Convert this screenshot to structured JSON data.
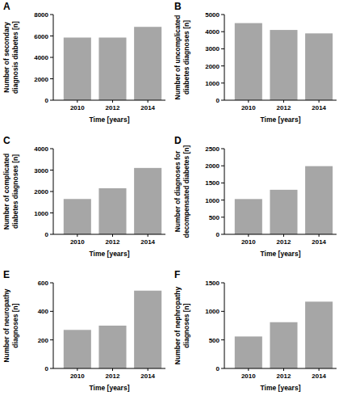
{
  "chart_data": [
    {
      "type": "bar",
      "title": "A",
      "y_label": "Number of secondary diagnosis diabetes [n]",
      "x_label": "Time [years]",
      "categories": [
        "2010",
        "2012",
        "2014"
      ],
      "values": [
        5850,
        5850,
        6850
      ],
      "color": "#a6a6a6",
      "ylim": [
        0,
        8000
      ],
      "yticks": [
        0,
        2000,
        4000,
        6000,
        8000
      ]
    },
    {
      "type": "bar",
      "title": "B",
      "y_label": "Number of uncomplicated diabetes diagnoses [n]",
      "x_label": "Time [years]",
      "categories": [
        "2010",
        "2012",
        "2014"
      ],
      "values": [
        4500,
        4100,
        3900
      ],
      "color": "#a6a6a6",
      "ylim": [
        0,
        5000
      ],
      "yticks": [
        0,
        1000,
        2000,
        3000,
        4000,
        5000
      ]
    },
    {
      "type": "bar",
      "title": "C",
      "y_label": "Number of complicated diabetes diagnoses [n]",
      "x_label": "Time [years]",
      "categories": [
        "2010",
        "2012",
        "2014"
      ],
      "values": [
        1650,
        2150,
        3100
      ],
      "color": "#a6a6a6",
      "ylim": [
        0,
        4000
      ],
      "yticks": [
        0,
        1000,
        2000,
        3000,
        4000
      ]
    },
    {
      "type": "bar",
      "title": "D",
      "y_label": "Number of diagnoses for decompensated diabetes [n]",
      "x_label": "Time [years]",
      "categories": [
        "2010",
        "2012",
        "2014"
      ],
      "values": [
        1030,
        1300,
        1990
      ],
      "color": "#a6a6a6",
      "ylim": [
        0,
        2500
      ],
      "yticks": [
        0,
        500,
        1000,
        1500,
        2000,
        2500
      ]
    },
    {
      "type": "bar",
      "title": "E",
      "y_label": "Number of neuropathy diagnoses [n]",
      "x_label": "Time [years]",
      "categories": [
        "2010",
        "2012",
        "2014"
      ],
      "values": [
        270,
        300,
        545
      ],
      "color": "#a6a6a6",
      "ylim": [
        0,
        600
      ],
      "yticks": [
        0,
        200,
        400,
        600
      ]
    },
    {
      "type": "bar",
      "title": "F",
      "y_label": "Number of nephropathy diagnoses [n]",
      "x_label": "Time [years]",
      "categories": [
        "2010",
        "2012",
        "2014"
      ],
      "values": [
        560,
        810,
        1170
      ],
      "color": "#a6a6a6",
      "ylim": [
        0,
        1500
      ],
      "yticks": [
        0,
        500,
        1000,
        1500
      ]
    }
  ]
}
